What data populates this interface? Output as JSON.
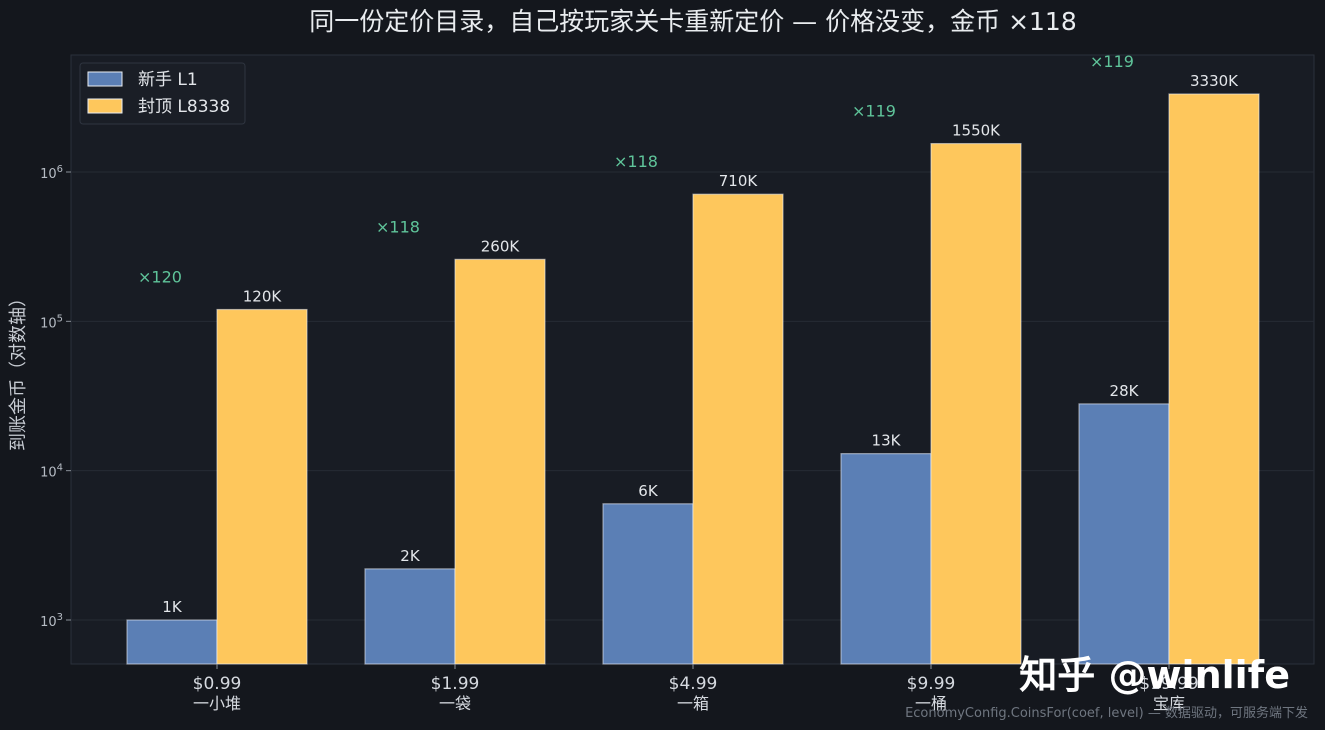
{
  "chart_data": {
    "type": "bar",
    "title": "同一份定价目录，自己按玩家关卡重新定价  —  价格没变，金币 ×118",
    "ylabel": "到账金币（对数轴）",
    "yscale": "log",
    "ylim": [
      500,
      5500000
    ],
    "ytick_labels": [
      {
        "value": 1000,
        "base": "10",
        "exp": "3"
      },
      {
        "value": 10000,
        "base": "10",
        "exp": "4"
      },
      {
        "value": 100000,
        "base": "10",
        "exp": "5"
      },
      {
        "value": 1000000,
        "base": "10",
        "exp": "6"
      }
    ],
    "categories": [
      {
        "price": "$0.99",
        "name": "一小堆"
      },
      {
        "price": "$1.99",
        "name": "一袋"
      },
      {
        "price": "$4.99",
        "name": "一箱"
      },
      {
        "price": "$9.99",
        "name": "一桶"
      },
      {
        "price": "$19.99",
        "name": "宝库"
      }
    ],
    "series": [
      {
        "name": "新手 L1",
        "color": "#5b7fb5",
        "values": [
          1000,
          2200,
          6000,
          13000,
          28000
        ],
        "labels": [
          "1K",
          "2K",
          "6K",
          "13K",
          "28K"
        ]
      },
      {
        "name": "封顶 L8338",
        "color": "#fec75c",
        "values": [
          120000,
          260000,
          710000,
          1550000,
          3330000
        ],
        "labels": [
          "120K",
          "260K",
          "710K",
          "1550K",
          "3330K"
        ]
      }
    ],
    "ratio_labels": [
      "×120",
      "×118",
      "×118",
      "×119",
      "×119"
    ],
    "legend_position": "top-left",
    "grid": true
  },
  "footnote": "EconomyConfig.CoinsFor(coef, level)  —  数据驱动，可服务端下发",
  "watermark": "知乎 @winlife",
  "colors": {
    "background": "#14171d",
    "plot_bg": "#181c24",
    "grid": "#262b35",
    "ratio": "#5fc49a",
    "bar_edge": "#e9edf2"
  }
}
